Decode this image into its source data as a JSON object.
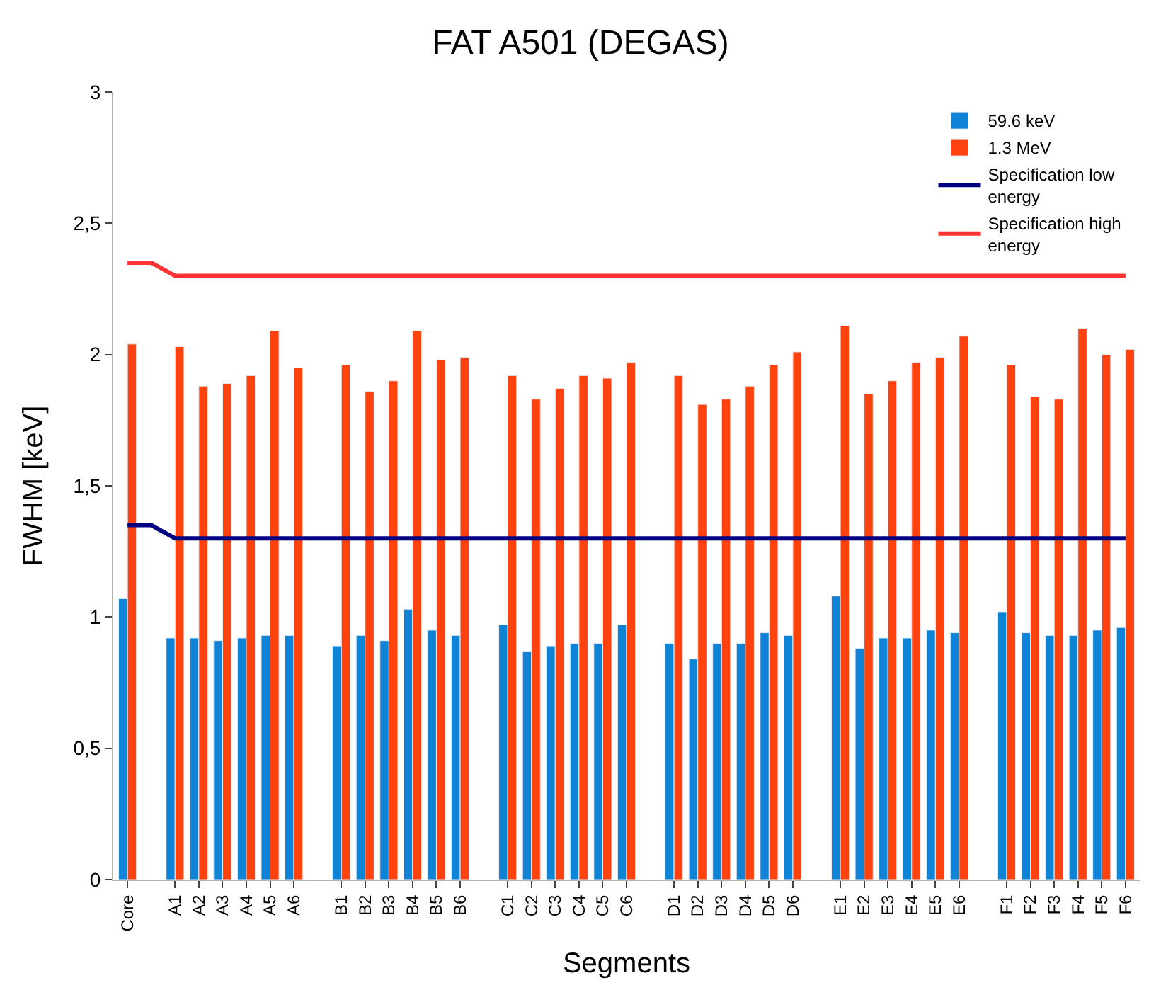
{
  "chart_data": {
    "type": "bar",
    "title": "FAT A501 (DEGAS)",
    "xlabel": "Segments",
    "ylabel": "FWHM [keV]",
    "categories": [
      "Core",
      null,
      "A1",
      "A2",
      "A3",
      "A4",
      "A5",
      "A6",
      null,
      "B1",
      "B2",
      "B3",
      "B4",
      "B5",
      "B6",
      null,
      "C1",
      "C2",
      "C3",
      "C4",
      "C5",
      "C6",
      null,
      "D1",
      "D2",
      "D3",
      "D4",
      "D5",
      "D6",
      null,
      "E1",
      "E2",
      "E3",
      "E4",
      "E5",
      "E6",
      null,
      "F1",
      "F2",
      "F3",
      "F4",
      "F5",
      "F6"
    ],
    "series": [
      {
        "name": "59.6 keV",
        "color": "#0f84d6",
        "values": [
          1.07,
          null,
          0.92,
          0.92,
          0.91,
          0.92,
          0.93,
          0.93,
          null,
          0.89,
          0.93,
          0.91,
          1.03,
          0.95,
          0.93,
          null,
          0.97,
          0.87,
          0.89,
          0.9,
          0.9,
          0.97,
          null,
          0.9,
          0.84,
          0.9,
          0.9,
          0.94,
          0.93,
          null,
          1.08,
          0.88,
          0.92,
          0.92,
          0.95,
          0.94,
          null,
          1.02,
          0.94,
          0.93,
          0.93,
          0.95,
          0.96
        ]
      },
      {
        "name": "1.3 MeV",
        "color": "#ff420e",
        "values": [
          2.04,
          null,
          2.03,
          1.88,
          1.89,
          1.92,
          2.09,
          1.95,
          null,
          1.96,
          1.86,
          1.9,
          2.09,
          1.98,
          1.99,
          null,
          1.92,
          1.83,
          1.87,
          1.92,
          1.91,
          1.97,
          null,
          1.92,
          1.81,
          1.83,
          1.88,
          1.96,
          2.01,
          null,
          2.11,
          1.85,
          1.9,
          1.97,
          1.99,
          2.07,
          null,
          1.96,
          1.84,
          1.83,
          2.1,
          2.0,
          2.02
        ]
      },
      {
        "name": "Specification low energy",
        "type": "line",
        "color": "#000080",
        "values": [
          1.35,
          1.35,
          1.3,
          1.3,
          1.3,
          1.3,
          1.3,
          1.3,
          1.3,
          1.3,
          1.3,
          1.3,
          1.3,
          1.3,
          1.3,
          1.3,
          1.3,
          1.3,
          1.3,
          1.3,
          1.3,
          1.3,
          1.3,
          1.3,
          1.3,
          1.3,
          1.3,
          1.3,
          1.3,
          1.3,
          1.3,
          1.3,
          1.3,
          1.3,
          1.3,
          1.3,
          1.3,
          1.3,
          1.3,
          1.3,
          1.3,
          1.3,
          1.3
        ]
      },
      {
        "name": "Specification high energy",
        "type": "line",
        "color": "#ff3333",
        "values": [
          2.35,
          2.35,
          2.3,
          2.3,
          2.3,
          2.3,
          2.3,
          2.3,
          2.3,
          2.3,
          2.3,
          2.3,
          2.3,
          2.3,
          2.3,
          2.3,
          2.3,
          2.3,
          2.3,
          2.3,
          2.3,
          2.3,
          2.3,
          2.3,
          2.3,
          2.3,
          2.3,
          2.3,
          2.3,
          2.3,
          2.3,
          2.3,
          2.3,
          2.3,
          2.3,
          2.3,
          2.3,
          2.3,
          2.3,
          2.3,
          2.3,
          2.3,
          2.3
        ]
      }
    ],
    "ylim": [
      0,
      3
    ],
    "yticks": [
      0,
      {
        "value": 0.5,
        "label": "0,5"
      },
      1,
      {
        "value": 1.5,
        "label": "1,5"
      },
      2,
      {
        "value": 2.5,
        "label": "2,5"
      },
      3
    ],
    "legend": "top right",
    "marker": "none",
    "line_style": "solid"
  }
}
